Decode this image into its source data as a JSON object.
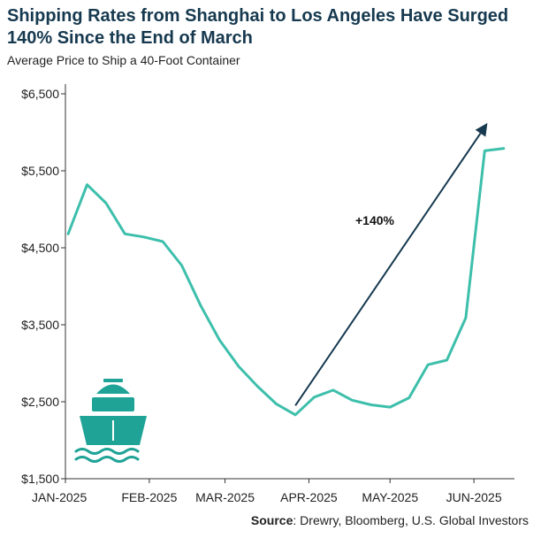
{
  "chart_data": {
    "type": "line",
    "title": "Shipping Rates from Shanghai to Los Angeles Have Surged 140% Since the End of March",
    "subtitle": "Average Price to Ship a 40-Foot Container",
    "xlabel": "",
    "ylabel": "",
    "x_tick_labels": [
      "JAN-2025",
      "FEB-2025",
      "MAR-2025",
      "APR-2025",
      "MAY-2025",
      "JUN-2025"
    ],
    "y_tick_labels": [
      "$6,500",
      "$5,500",
      "$4,500",
      "$3,500",
      "$2,500",
      "$1,500"
    ],
    "y_ticks": [
      6500,
      5500,
      4500,
      3500,
      2500,
      1500
    ],
    "ylim": [
      1500,
      6500
    ],
    "grid": false,
    "series": [
      {
        "color": "#3dbfab",
        "x": [
          "2025-01-02",
          "2025-01-09",
          "2025-01-16",
          "2025-01-23",
          "2025-01-30",
          "2025-02-06",
          "2025-02-13",
          "2025-02-20",
          "2025-02-27",
          "2025-03-06",
          "2025-03-13",
          "2025-03-20",
          "2025-03-27",
          "2025-04-03",
          "2025-04-10",
          "2025-04-17",
          "2025-04-24",
          "2025-05-01",
          "2025-05-08",
          "2025-05-15",
          "2025-05-22",
          "2025-05-29",
          "2025-06-05",
          "2025-06-12"
        ],
        "values": [
          4680,
          5320,
          5080,
          4680,
          4640,
          4580,
          4270,
          3750,
          3300,
          2960,
          2700,
          2470,
          2330,
          2560,
          2650,
          2520,
          2460,
          2430,
          2550,
          2980,
          3040,
          3590,
          5760,
          5790
        ]
      }
    ],
    "annotations": [
      {
        "text": "+140%",
        "type": "arrow",
        "color": "#16394f",
        "from": [
          "2025-03-27",
          2450
        ],
        "to": [
          "2025-06-06",
          6120
        ]
      }
    ]
  },
  "source": {
    "label": "Source",
    "text": ": Drewry, Bloomberg, U.S. Global Investors"
  },
  "icons": {
    "ship": "ship-icon",
    "color": "#1fa396"
  }
}
